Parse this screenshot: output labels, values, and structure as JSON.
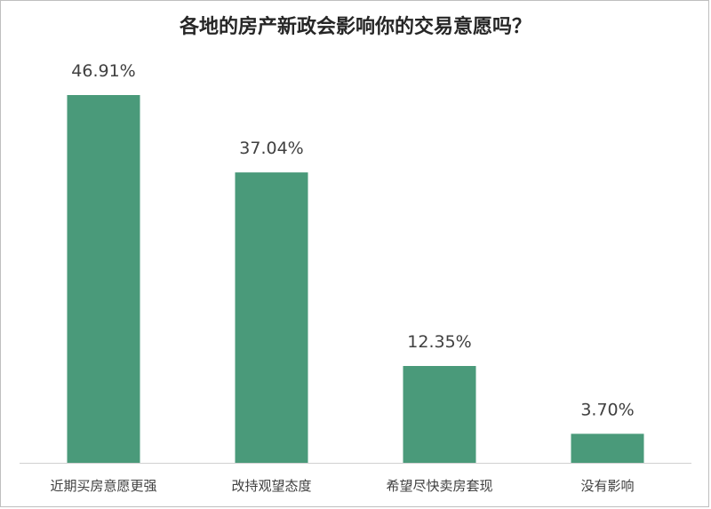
{
  "chart_data": {
    "type": "bar",
    "title": "各地的房产新政会影响你的交易意愿吗？",
    "categories": [
      "近期买房意愿更强",
      "改持观望态度",
      "希望尽快卖房套现",
      "没有影响"
    ],
    "values": [
      46.91,
      37.04,
      12.35,
      3.7
    ],
    "data_labels": [
      "46.91%",
      "37.04%",
      "12.35%",
      "3.70%"
    ],
    "value_unit": "%",
    "ylim": [
      0,
      50
    ],
    "grid": false,
    "legend": "none",
    "bar_color": "#4a9a7a"
  }
}
